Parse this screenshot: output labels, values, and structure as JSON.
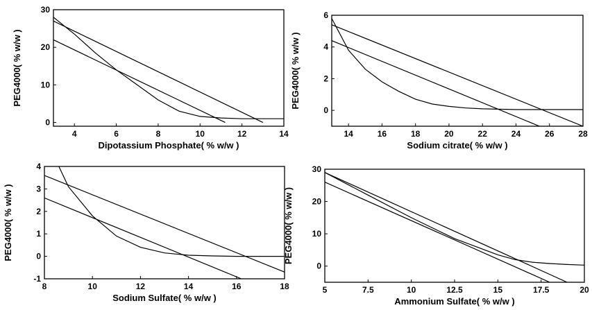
{
  "chart_data": [
    {
      "type": "line",
      "xlabel": "Dipotassium Phosphate( % w/w )",
      "ylabel": "PEG4000( % w/w )",
      "xlim": [
        3,
        14
      ],
      "ylim": [
        -1,
        30
      ],
      "xticks": [
        "4",
        "6",
        "8",
        "10",
        "12",
        "14"
      ],
      "yticks": [
        "0",
        "10",
        "20",
        "30"
      ],
      "series": [
        {
          "x": [
            3,
            4,
            5,
            6,
            7,
            8,
            9,
            10,
            11,
            12,
            13,
            14
          ],
          "values": [
            28,
            23.5,
            18.5,
            14,
            10,
            6,
            3,
            1.6,
            1.2,
            1.0,
            1.0,
            1.0
          ]
        },
        {
          "x": [
            3,
            13
          ],
          "values": [
            27,
            0
          ]
        },
        {
          "x": [
            3,
            11.2
          ],
          "values": [
            22,
            0
          ]
        }
      ]
    },
    {
      "type": "line",
      "xlabel": "Sodium citrate( % w/w )",
      "ylabel": "PEG4000( % w/w )",
      "xlim": [
        13,
        28
      ],
      "ylim": [
        -1,
        6
      ],
      "xticks": [
        "14",
        "16",
        "18",
        "20",
        "22",
        "24",
        "26",
        "28"
      ],
      "yticks": [
        "0",
        "2",
        "4",
        "6"
      ],
      "series": [
        {
          "x": [
            13,
            14,
            15,
            16,
            17,
            18,
            19,
            20,
            21,
            22,
            24,
            26,
            28
          ],
          "values": [
            5.8,
            3.8,
            2.6,
            1.8,
            1.2,
            0.7,
            0.4,
            0.25,
            0.15,
            0.1,
            0.05,
            0.05,
            0.05
          ]
        },
        {
          "x": [
            13,
            28
          ],
          "values": [
            5.4,
            -1
          ]
        },
        {
          "x": [
            13,
            25.4
          ],
          "values": [
            4.4,
            -1
          ]
        }
      ]
    },
    {
      "type": "line",
      "xlabel": "Sodium Sulfate( % w/w )",
      "ylabel": "PEG4000( % w/w )",
      "xlim": [
        8,
        18
      ],
      "ylim": [
        -1,
        4
      ],
      "xticks": [
        "8",
        "10",
        "12",
        "14",
        "16",
        "18"
      ],
      "yticks": [
        "-1",
        "0",
        "1",
        "2",
        "3",
        "4"
      ],
      "series": [
        {
          "x": [
            8.6,
            9,
            10,
            11,
            12,
            13,
            14,
            15,
            16,
            17,
            18
          ],
          "values": [
            4,
            3.1,
            1.8,
            0.9,
            0.4,
            0.15,
            0.05,
            0.02,
            0,
            0,
            0
          ]
        },
        {
          "x": [
            8,
            18
          ],
          "values": [
            3.6,
            -0.7
          ]
        },
        {
          "x": [
            8,
            16.2
          ],
          "values": [
            2.6,
            -1
          ]
        }
      ]
    },
    {
      "type": "line",
      "xlabel": "Ammonium Sulfate( % w/w )",
      "ylabel": "PEG4000( % w/w )",
      "xlim": [
        5,
        20
      ],
      "ylim": [
        -5,
        30
      ],
      "xticks": [
        "5",
        "7.5",
        "10",
        "12.5",
        "15",
        "17.5",
        "20"
      ],
      "yticks": [
        "0",
        "10",
        "20",
        "30"
      ],
      "series": [
        {
          "x": [
            5,
            7.5,
            10,
            12.5,
            15,
            16,
            17,
            18,
            19,
            20
          ],
          "values": [
            29,
            22,
            15,
            8.5,
            3.5,
            2,
            1.2,
            0.8,
            0.5,
            0.3
          ]
        },
        {
          "x": [
            5,
            19
          ],
          "values": [
            29,
            -5
          ]
        },
        {
          "x": [
            5,
            18
          ],
          "values": [
            26,
            -5
          ]
        }
      ]
    }
  ]
}
